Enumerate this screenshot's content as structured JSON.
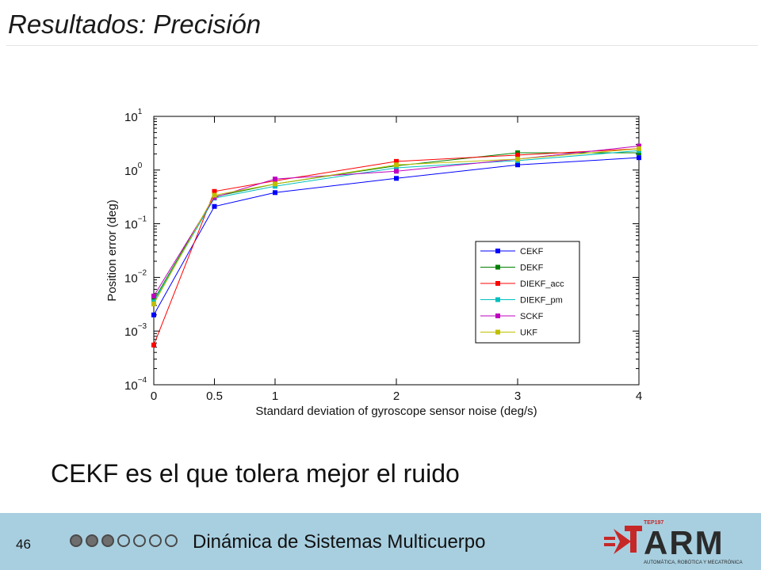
{
  "slide": {
    "title": "Resultados: Precisión",
    "remark": "CEKF es el que tolera mejor el ruido"
  },
  "footer": {
    "page_number": "46",
    "progress": {
      "completed": 3,
      "total": 7
    },
    "title": "Dinámica de Sistemas Multicuerpo",
    "logo": {
      "text": "ARM",
      "subtitle": "AUTOMÁTICA, ROBÓTICA Y MECATRÓNICA",
      "badge": "TEP197"
    }
  },
  "chart_data": {
    "type": "line",
    "title": "",
    "xlabel": "Standard deviation of gyroscope sensor noise (deg/s)",
    "ylabel": "Position error (deg)",
    "x": [
      0,
      0.5,
      1,
      2,
      3,
      4
    ],
    "x_ticks": [
      "0",
      "0.5",
      "1",
      "2",
      "3",
      "4"
    ],
    "xlim": [
      0,
      4
    ],
    "yscale": "log",
    "ylim": [
      0.0001,
      10
    ],
    "y_ticks": [
      {
        "value": 10,
        "base": "10",
        "exp": "1"
      },
      {
        "value": 1,
        "base": "10",
        "exp": "0"
      },
      {
        "value": 0.1,
        "base": "10",
        "exp": "−1"
      },
      {
        "value": 0.01,
        "base": "10",
        "exp": "−2"
      },
      {
        "value": 0.001,
        "base": "10",
        "exp": "−3"
      },
      {
        "value": 0.0001,
        "base": "10",
        "exp": "−4"
      }
    ],
    "grid": false,
    "legend": "inside-lower-right",
    "series": [
      {
        "name": "CEKF",
        "color": "#0000ff",
        "values": [
          0.002,
          0.21,
          0.38,
          0.7,
          1.25,
          1.7
        ]
      },
      {
        "name": "DEKF",
        "color": "#008000",
        "values": [
          0.0038,
          0.32,
          0.55,
          1.2,
          2.1,
          2.1
        ]
      },
      {
        "name": "DIEKF_acc",
        "color": "#ff0000",
        "values": [
          0.00055,
          0.4,
          0.63,
          1.45,
          1.9,
          2.5
        ]
      },
      {
        "name": "DIEKF_pm",
        "color": "#00bfbf",
        "values": [
          0.0035,
          0.3,
          0.5,
          1.1,
          1.5,
          2.3
        ]
      },
      {
        "name": "SCKF",
        "color": "#bf00bf",
        "values": [
          0.0045,
          0.31,
          0.68,
          0.95,
          1.6,
          2.8
        ]
      },
      {
        "name": "UKF",
        "color": "#bfbf00",
        "values": [
          0.0032,
          0.34,
          0.55,
          1.25,
          1.6,
          2.5
        ]
      }
    ]
  }
}
